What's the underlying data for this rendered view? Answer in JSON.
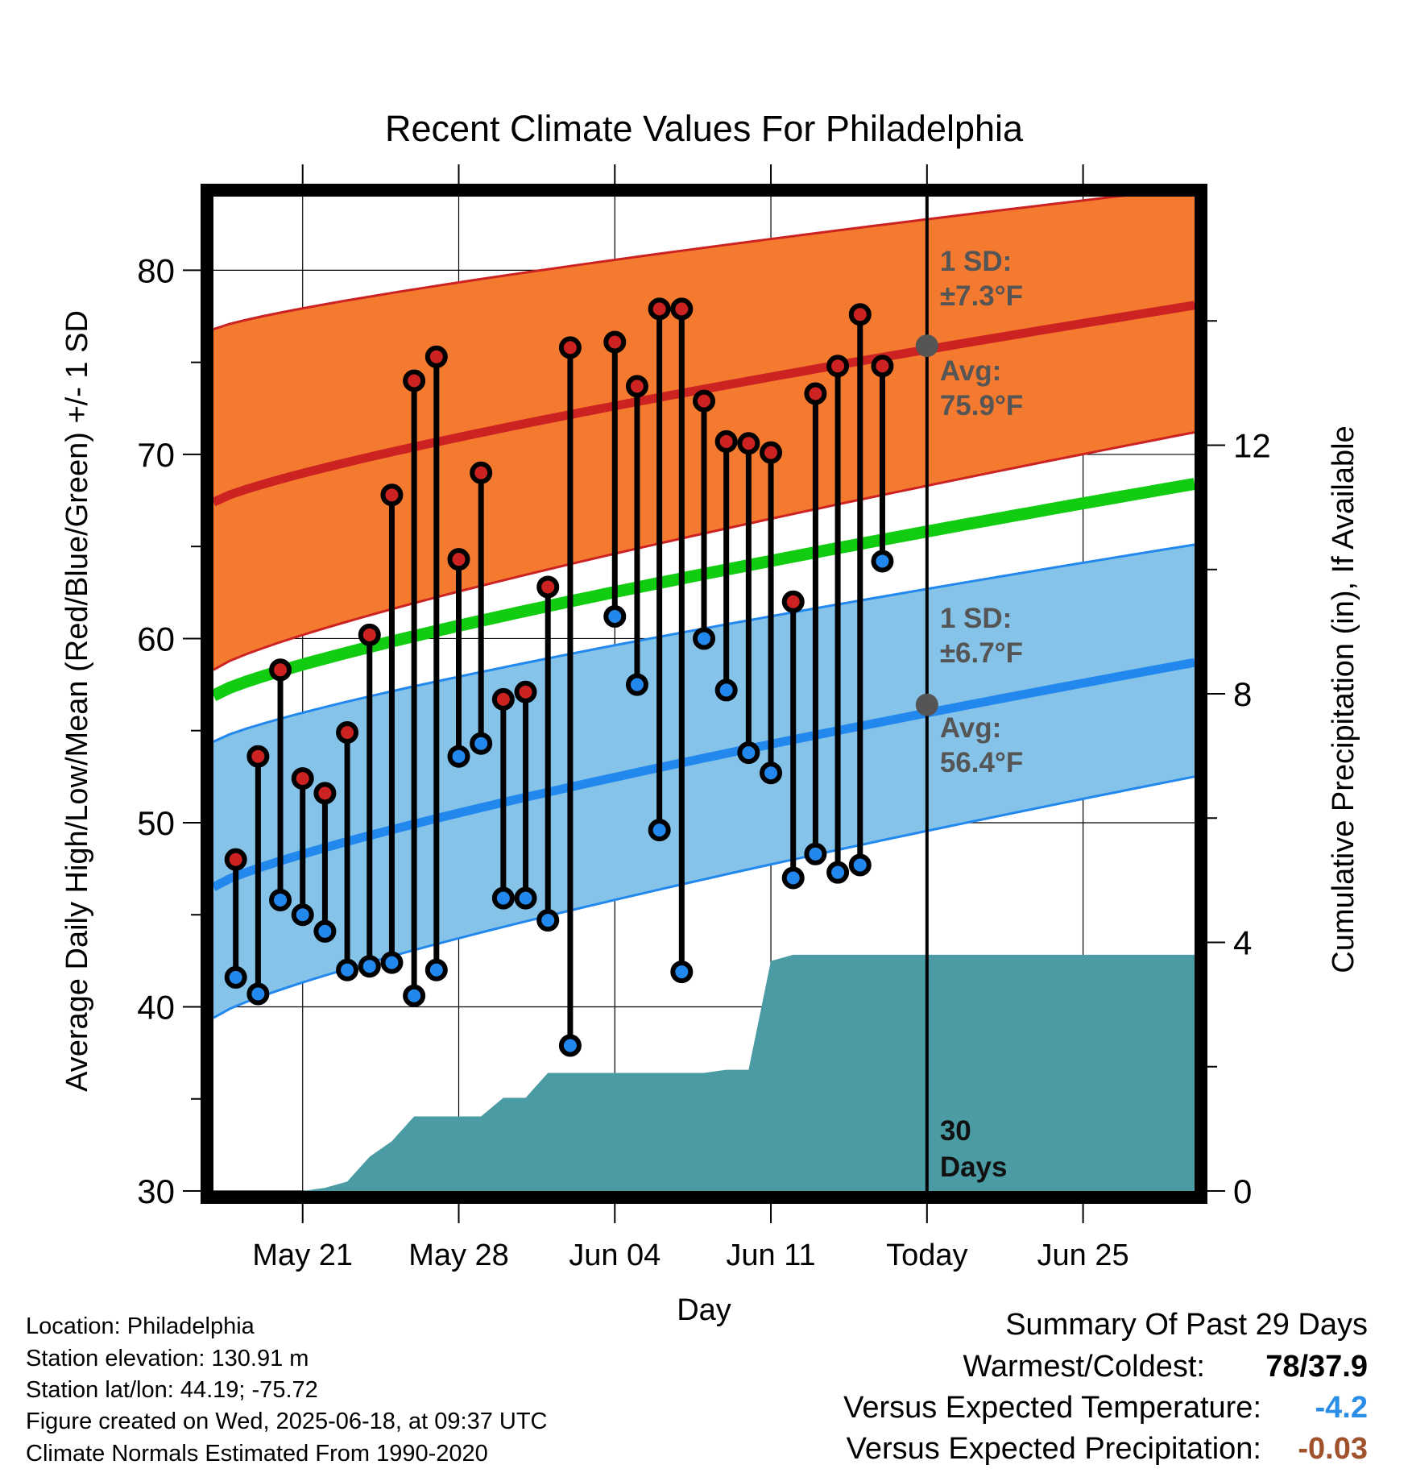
{
  "chart_data": {
    "type": "line",
    "title": "Recent Climate Values For Philadelphia",
    "xlabel": "Day",
    "ylabel": "Average Daily High/Low/Mean (Red/Blue/Green) +/- 1 SD",
    "y2label": "Cumulative Precipitation (in), If Available",
    "ylim": [
      30,
      84
    ],
    "y2lim": [
      0,
      16
    ],
    "xlim": [
      "2025-05-17",
      "2025-06-30"
    ],
    "yticks": [
      "30",
      "40",
      "50",
      "60",
      "70",
      "80"
    ],
    "y2ticks": [
      "0",
      "4",
      "8",
      "12"
    ],
    "xticks": [
      {
        "date": "2025-05-21",
        "label": "May 21"
      },
      {
        "date": "2025-05-28",
        "label": "May 28"
      },
      {
        "date": "2025-06-04",
        "label": "Jun 04"
      },
      {
        "date": "2025-06-11",
        "label": "Jun 11"
      },
      {
        "date": "2025-06-18",
        "label": "Today"
      },
      {
        "date": "2025-06-25",
        "label": "Jun 25"
      }
    ],
    "grid": true,
    "today": "2025-06-18",
    "normals": {
      "dates": [
        "2025-05-17",
        "2025-06-30"
      ],
      "high_avg": [
        67.4,
        78.1
      ],
      "high_upper": [
        76.8,
        84.5
      ],
      "high_lower": [
        58.3,
        71.2
      ],
      "mean_avg": [
        56.9,
        68.4
      ],
      "low_avg": [
        46.5,
        58.7
      ],
      "low_upper": [
        54.4,
        65.1
      ],
      "low_lower": [
        39.4,
        52.5
      ]
    },
    "series": [
      {
        "name": "High",
        "color": "#cc2222",
        "values": [
          48,
          53.6,
          58.3,
          52.4,
          51.6,
          54.9,
          60.2,
          67.8,
          74,
          75.3,
          64.3,
          69,
          56.7,
          57.1,
          62.8,
          75.8,
          null,
          76.1,
          73.7,
          77.9,
          77.9,
          72.9,
          70.7,
          70.6,
          70.1,
          62,
          73.3,
          74.8,
          77.6,
          74.8
        ]
      },
      {
        "name": "Low",
        "color": "#2288ee",
        "values": [
          41.6,
          40.7,
          45.8,
          45,
          44.1,
          42,
          42.2,
          42.4,
          40.6,
          42,
          53.6,
          54.3,
          45.9,
          45.9,
          44.7,
          37.9,
          null,
          61.2,
          57.5,
          49.6,
          41.9,
          60,
          57.2,
          53.8,
          52.7,
          47,
          48.3,
          47.3,
          47.7,
          64.2
        ]
      }
    ],
    "obs_start": "2025-05-18",
    "precip_cumulative": [
      0,
      0,
      0,
      0,
      0.05,
      0.15,
      0.55,
      0.8,
      1.2,
      1.2,
      1.2,
      1.2,
      1.5,
      1.5,
      1.9,
      1.9,
      1.9,
      1.9,
      1.9,
      1.9,
      1.9,
      1.9,
      1.95,
      1.95,
      3.7,
      3.8,
      3.8,
      3.8,
      3.8,
      3.8,
      3.8
    ],
    "precip_dates_start": "2025-05-18",
    "annotations": {
      "high_sd_line1": "1 SD:",
      "high_sd_line2": "±7.3°F",
      "high_avg_line1": "Avg:",
      "high_avg_line2": "75.9°F",
      "high_today_value": 75.9,
      "low_sd_line1": "1 SD:",
      "low_sd_line2": "±6.7°F",
      "low_avg_line1": "Avg:",
      "low_avg_line2": "56.4°F",
      "low_today_value": 56.4,
      "days_line1": "30",
      "days_line2": "Days"
    },
    "colors": {
      "high_band": "#f47a30",
      "high_line": "#cc2222",
      "low_band": "#85c3e9",
      "low_line": "#2288ee",
      "mean_line": "#11cc11",
      "precip": "#4a9ba3",
      "annotation_text": "#555555"
    }
  },
  "info": {
    "location": "Location: Philadelphia",
    "elevation": "Station elevation: 130.91 m",
    "latlon": "Station lat/lon: 44.19; -75.72",
    "created": "Figure created on Wed, 2025-06-18, at 09:37 UTC",
    "normals": "Climate Normals Estimated From 1990-2020"
  },
  "summary": {
    "title": "Summary Of Past 29 Days",
    "warmest_coldest_label": "Warmest/Coldest:",
    "warmest_coldest_value": "78/37.9",
    "temp_label": "Versus Expected Temperature:",
    "temp_value": "-4.2",
    "temp_color": "#2a8ee6",
    "precip_label": "Versus Expected Precipitation:",
    "precip_value": "-0.03",
    "precip_color": "#a0522d"
  }
}
